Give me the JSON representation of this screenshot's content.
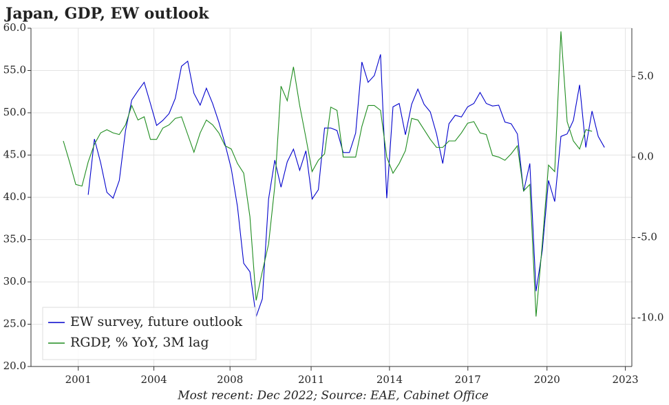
{
  "chart_data": {
    "type": "line",
    "title": "Japan, GDP, EW outlook",
    "footnote": "Most recent: Dec 2022; Source: EAE, Cabinet Office",
    "x": [
      2000.4,
      2000.65,
      2000.9,
      2001.15,
      2001.4,
      2001.65,
      2001.9,
      2002.15,
      2002.4,
      2002.65,
      2002.9,
      2003.15,
      2003.4,
      2003.65,
      2003.9,
      2004.15,
      2004.4,
      2004.65,
      2004.9,
      2005.15,
      2005.4,
      2005.65,
      2005.9,
      2006.15,
      2006.4,
      2006.65,
      2006.9,
      2007.15,
      2007.4,
      2007.65,
      2007.9,
      2008.15,
      2008.4,
      2008.65,
      2008.9,
      2009.15,
      2009.4,
      2009.65,
      2009.9,
      2010.15,
      2010.4,
      2010.65,
      2010.9,
      2011.15,
      2011.4,
      2011.65,
      2011.9,
      2012.15,
      2012.4,
      2012.65,
      2012.9,
      2013.15,
      2013.4,
      2013.65,
      2013.9,
      2014.15,
      2014.4,
      2014.65,
      2014.9,
      2015.15,
      2015.4,
      2015.65,
      2015.9,
      2016.15,
      2016.4,
      2016.65,
      2016.9,
      2017.15,
      2017.4,
      2017.65,
      2017.9,
      2018.15,
      2018.4,
      2018.65,
      2018.9,
      2019.15,
      2019.4,
      2019.65,
      2019.9,
      2020.15,
      2020.4,
      2020.65,
      2020.9,
      2021.15,
      2021.4,
      2021.65,
      2021.9,
      2022.15
    ],
    "series": [
      {
        "name": "EW survey, future outlook",
        "color": "#0000cc",
        "axis": "y",
        "values": [
          null,
          null,
          null,
          null,
          40.3,
          46.9,
          44.1,
          40.6,
          39.9,
          42.0,
          47.9,
          51.5,
          52.6,
          53.6,
          51.1,
          48.5,
          49.1,
          49.9,
          51.7,
          55.5,
          56.1,
          52.3,
          50.9,
          52.9,
          51.1,
          48.9,
          46.3,
          43.4,
          38.9,
          32.2,
          31.2,
          25.9,
          28.0,
          39.8,
          44.4,
          41.2,
          44.2,
          45.7,
          43.2,
          45.5,
          39.8,
          40.9,
          48.2,
          48.2,
          47.9,
          45.3,
          45.3,
          47.6,
          56.0,
          53.6,
          54.4,
          56.9,
          39.9,
          50.7,
          51.1,
          47.4,
          51.0,
          52.8,
          51.0,
          50.1,
          47.5,
          44.0,
          48.7,
          49.7,
          49.5,
          50.7,
          51.1,
          52.4,
          51.1,
          50.8,
          50.9,
          48.9,
          48.7,
          47.5,
          40.7,
          44.0,
          28.9,
          33.7,
          42.0,
          39.5,
          47.2,
          47.5,
          49.1,
          53.3,
          45.9,
          50.2,
          47.2,
          45.9
        ]
      },
      {
        "name": "RGDP, % YoY, 3M lag",
        "color": "#1e8c1e",
        "axis": "y2",
        "values": [
          1.0,
          -0.3,
          -1.7,
          -1.8,
          -0.3,
          0.8,
          1.5,
          1.7,
          1.5,
          1.4,
          2.0,
          3.2,
          2.3,
          2.5,
          1.1,
          1.1,
          1.8,
          2.0,
          2.4,
          2.5,
          1.4,
          0.3,
          1.5,
          2.3,
          2.0,
          1.5,
          0.7,
          0.5,
          -0.4,
          -1.0,
          -3.7,
          -8.9,
          -7.1,
          -5.4,
          -1.8,
          4.4,
          3.5,
          5.6,
          3.2,
          1.2,
          -0.9,
          -0.2,
          0.2,
          3.1,
          2.9,
          0.0,
          0.0,
          0.0,
          1.9,
          3.2,
          3.2,
          2.9,
          0.0,
          -1.0,
          -0.4,
          0.4,
          2.4,
          2.3,
          1.7,
          1.1,
          0.6,
          0.6,
          1.0,
          1.0,
          1.5,
          2.1,
          2.2,
          1.5,
          1.4,
          0.1,
          0.0,
          -0.2,
          0.2,
          0.7,
          -2.1,
          -1.7,
          -9.9,
          -5.4,
          -0.5,
          -0.9,
          7.8,
          2.2,
          1.0,
          0.5,
          1.7,
          1.6,
          null,
          null
        ]
      }
    ],
    "xlim": [
      1999.1,
      2023.25
    ],
    "xticks": [
      {
        "value": 2001.0,
        "label": "2001"
      },
      {
        "value": 2004.04,
        "label": "2004"
      },
      {
        "value": 2007.1,
        "label": "2008"
      },
      {
        "value": 2010.36,
        "label": "2011"
      },
      {
        "value": 2013.51,
        "label": "2014"
      },
      {
        "value": 2016.66,
        "label": "2017"
      },
      {
        "value": 2019.84,
        "label": "2020"
      },
      {
        "value": 2022.99,
        "label": "2023"
      }
    ],
    "ylim": [
      20,
      60
    ],
    "yticks": [
      {
        "value": 20,
        "label": "20.0"
      },
      {
        "value": 25,
        "label": "25.0"
      },
      {
        "value": 30,
        "label": "30.0"
      },
      {
        "value": 35,
        "label": "35.0"
      },
      {
        "value": 40,
        "label": "40.0"
      },
      {
        "value": 45,
        "label": "45.0"
      },
      {
        "value": 50,
        "label": "50.0"
      },
      {
        "value": 55,
        "label": "55.0"
      },
      {
        "value": 60,
        "label": "60.0"
      }
    ],
    "y2lim": [
      -13,
      8
    ],
    "y2ticks": [
      {
        "value": 5,
        "label": "5.0"
      },
      {
        "value": 0,
        "label": "0.0"
      },
      {
        "value": -5,
        "label": "-5.0"
      },
      {
        "value": -10,
        "label": "-10.0"
      }
    ],
    "grid": true,
    "legend": "lower left"
  }
}
